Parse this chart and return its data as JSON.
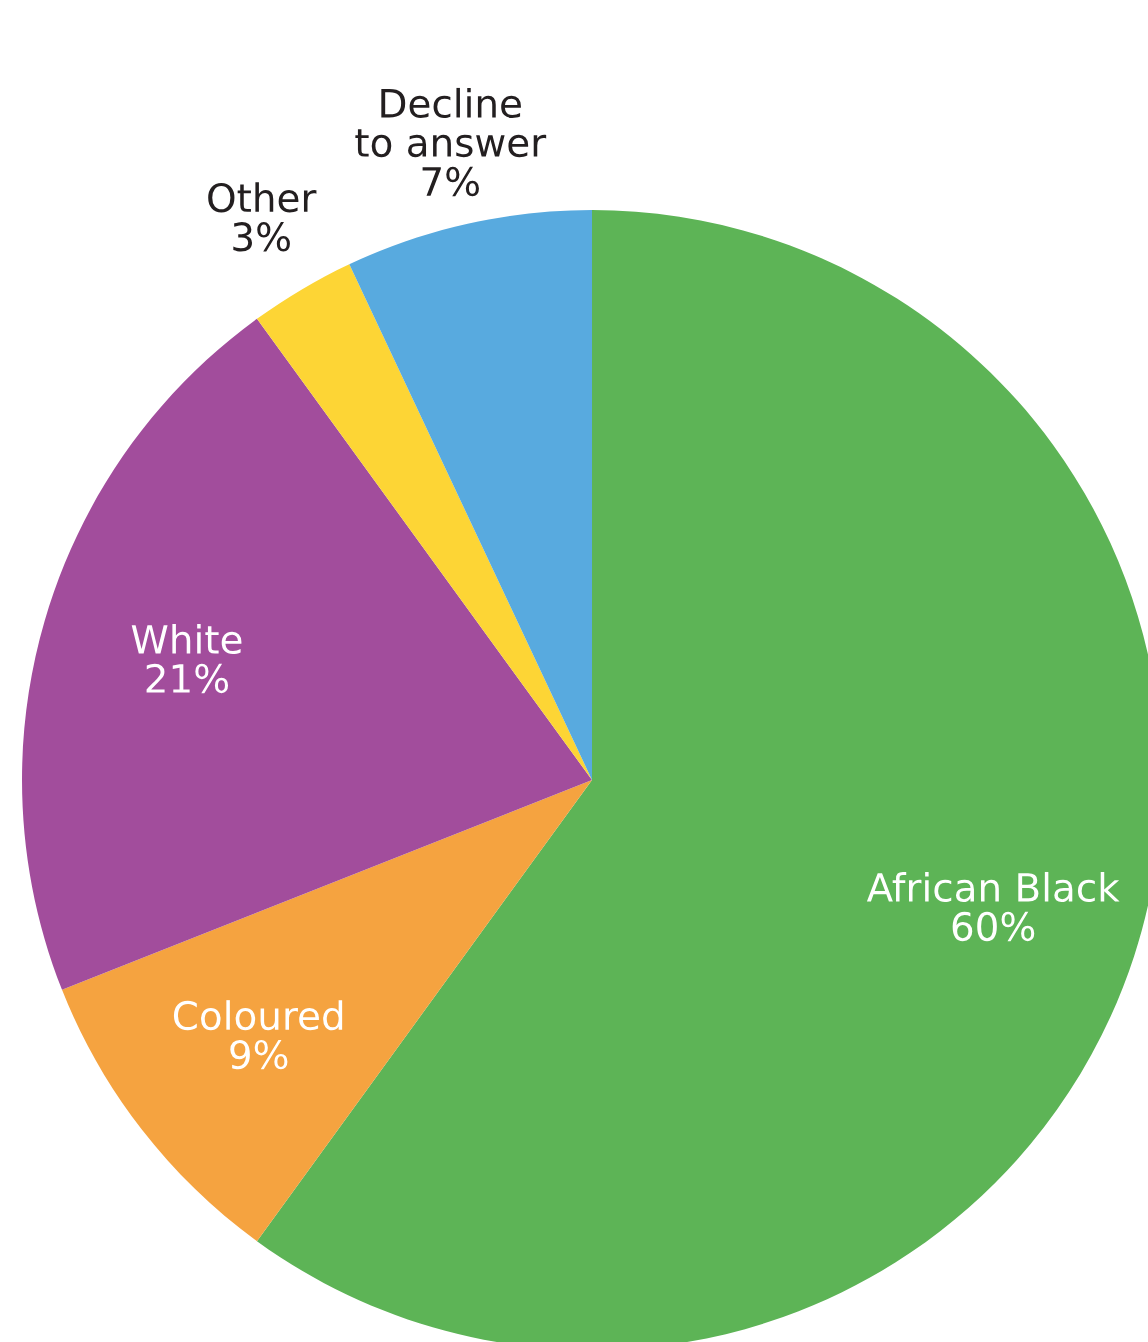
{
  "chart_data": {
    "type": "pie",
    "categories": [
      "African Black",
      "Coloured",
      "White",
      "Other",
      "Decline\nto answer"
    ],
    "values": [
      60,
      9,
      21,
      3,
      7
    ],
    "colors": [
      "#5db456",
      "#f5a340",
      "#a24d9c",
      "#fdd535",
      "#58aadf"
    ],
    "value_labels": [
      "60%",
      "9%",
      "21%",
      "3%",
      "7%"
    ]
  }
}
